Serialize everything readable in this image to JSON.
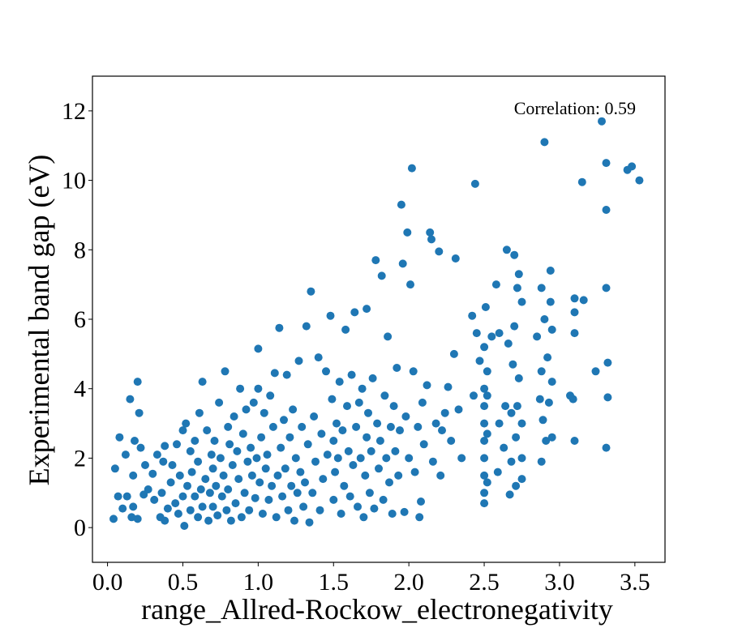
{
  "chart_data": {
    "type": "scatter",
    "xlabel": "range_Allred-Rockow_electronegativity",
    "ylabel": "Experimental band gap (eV)",
    "annotation": "Correlation: 0.59",
    "xlim": [
      -0.1,
      3.7
    ],
    "ylim": [
      -1,
      13
    ],
    "xticks": [
      0.0,
      0.5,
      1.0,
      1.5,
      2.0,
      2.5,
      3.0,
      3.5
    ],
    "xtick_labels": [
      "0.0",
      "0.5",
      "1.0",
      "1.5",
      "2.0",
      "2.5",
      "3.0",
      "3.5"
    ],
    "yticks": [
      0,
      2,
      4,
      6,
      8,
      10,
      12
    ],
    "ytick_labels": [
      "0",
      "2",
      "4",
      "6",
      "8",
      "10",
      "12"
    ],
    "grid": false,
    "marker_color": "#1f77b4",
    "series": [
      {
        "points": [
          [
            0.04,
            0.25
          ],
          [
            0.05,
            1.7
          ],
          [
            0.07,
            0.9
          ],
          [
            0.08,
            2.6
          ],
          [
            0.1,
            0.55
          ],
          [
            0.12,
            2.1
          ],
          [
            0.13,
            0.9
          ],
          [
            0.15,
            3.7
          ],
          [
            0.16,
            0.3
          ],
          [
            0.17,
            0.6
          ],
          [
            0.17,
            1.5
          ],
          [
            0.18,
            2.5
          ],
          [
            0.2,
            0.25
          ],
          [
            0.2,
            4.2
          ],
          [
            0.21,
            3.3
          ],
          [
            0.22,
            2.3
          ],
          [
            0.24,
            0.95
          ],
          [
            0.25,
            1.8
          ],
          [
            0.27,
            1.1
          ],
          [
            0.3,
            1.55
          ],
          [
            0.31,
            0.8
          ],
          [
            0.33,
            2.1
          ],
          [
            0.35,
            0.3
          ],
          [
            0.36,
            1.0
          ],
          [
            0.37,
            1.9
          ],
          [
            0.38,
            0.2
          ],
          [
            0.38,
            2.35
          ],
          [
            0.4,
            0.55
          ],
          [
            0.42,
            1.3
          ],
          [
            0.43,
            1.8
          ],
          [
            0.45,
            0.7
          ],
          [
            0.46,
            2.4
          ],
          [
            0.47,
            0.4
          ],
          [
            0.48,
            1.5
          ],
          [
            0.5,
            0.9
          ],
          [
            0.5,
            2.8
          ],
          [
            0.51,
            0.05
          ],
          [
            0.52,
            3.0
          ],
          [
            0.53,
            1.2
          ],
          [
            0.55,
            0.5
          ],
          [
            0.55,
            2.2
          ],
          [
            0.56,
            1.6
          ],
          [
            0.58,
            0.9
          ],
          [
            0.58,
            2.5
          ],
          [
            0.6,
            0.3
          ],
          [
            0.6,
            1.9
          ],
          [
            0.61,
            3.3
          ],
          [
            0.62,
            1.1
          ],
          [
            0.63,
            0.6
          ],
          [
            0.63,
            4.2
          ],
          [
            0.65,
            1.4
          ],
          [
            0.66,
            2.8
          ],
          [
            0.67,
            0.2
          ],
          [
            0.68,
            1.0
          ],
          [
            0.69,
            2.1
          ],
          [
            0.7,
            0.6
          ],
          [
            0.7,
            1.7
          ],
          [
            0.71,
            2.5
          ],
          [
            0.72,
            1.2
          ],
          [
            0.73,
            0.35
          ],
          [
            0.74,
            3.6
          ],
          [
            0.75,
            2.0
          ],
          [
            0.76,
            0.9
          ],
          [
            0.77,
            1.5
          ],
          [
            0.78,
            4.5
          ],
          [
            0.79,
            0.5
          ],
          [
            0.8,
            2.9
          ],
          [
            0.8,
            1.1
          ],
          [
            0.81,
            2.4
          ],
          [
            0.82,
            0.2
          ],
          [
            0.83,
            1.8
          ],
          [
            0.84,
            3.2
          ],
          [
            0.85,
            0.7
          ],
          [
            0.86,
            2.2
          ],
          [
            0.87,
            1.4
          ],
          [
            0.88,
            4.0
          ],
          [
            0.89,
            0.3
          ],
          [
            0.9,
            2.7
          ],
          [
            0.91,
            1.0
          ],
          [
            0.92,
            3.4
          ],
          [
            0.93,
            1.9
          ],
          [
            0.94,
            0.5
          ],
          [
            0.95,
            2.3
          ],
          [
            0.96,
            1.5
          ],
          [
            0.97,
            3.6
          ],
          [
            0.98,
            0.85
          ],
          [
            0.99,
            2.0
          ],
          [
            1.0,
            5.15
          ],
          [
            1.0,
            4.0
          ],
          [
            1.01,
            1.3
          ],
          [
            1.02,
            2.6
          ],
          [
            1.03,
            0.4
          ],
          [
            1.04,
            3.3
          ],
          [
            1.05,
            1.7
          ],
          [
            1.06,
            2.1
          ],
          [
            1.07,
            0.8
          ],
          [
            1.08,
            3.8
          ],
          [
            1.09,
            1.2
          ],
          [
            1.1,
            2.9
          ],
          [
            1.11,
            4.45
          ],
          [
            1.12,
            0.3
          ],
          [
            1.13,
            1.5
          ],
          [
            1.14,
            5.75
          ],
          [
            1.15,
            2.3
          ],
          [
            1.16,
            0.9
          ],
          [
            1.17,
            3.1
          ],
          [
            1.18,
            1.7
          ],
          [
            1.19,
            4.4
          ],
          [
            1.2,
            0.5
          ],
          [
            1.21,
            2.6
          ],
          [
            1.22,
            1.2
          ],
          [
            1.23,
            3.4
          ],
          [
            1.24,
            0.2
          ],
          [
            1.25,
            2.0
          ],
          [
            1.26,
            1.0
          ],
          [
            1.27,
            4.8
          ],
          [
            1.28,
            1.6
          ],
          [
            1.29,
            2.9
          ],
          [
            1.3,
            0.6
          ],
          [
            1.31,
            1.3
          ],
          [
            1.32,
            5.8
          ],
          [
            1.33,
            2.4
          ],
          [
            1.34,
            0.15
          ],
          [
            1.35,
            6.8
          ],
          [
            1.36,
            1.0
          ],
          [
            1.37,
            3.2
          ],
          [
            1.38,
            1.9
          ],
          [
            1.4,
            4.9
          ],
          [
            1.41,
            0.5
          ],
          [
            1.42,
            2.7
          ],
          [
            1.43,
            1.4
          ],
          [
            1.45,
            4.5
          ],
          [
            1.46,
            2.1
          ],
          [
            1.48,
            6.1
          ],
          [
            1.49,
            3.7
          ],
          [
            1.5,
            0.8
          ],
          [
            1.5,
            2.5
          ],
          [
            1.51,
            1.6
          ],
          [
            1.52,
            3.0
          ],
          [
            1.53,
            2.0
          ],
          [
            1.54,
            4.2
          ],
          [
            1.55,
            0.4
          ],
          [
            1.56,
            2.8
          ],
          [
            1.57,
            1.2
          ],
          [
            1.58,
            5.7
          ],
          [
            1.59,
            3.5
          ],
          [
            1.6,
            2.2
          ],
          [
            1.61,
            0.9
          ],
          [
            1.62,
            4.4
          ],
          [
            1.63,
            1.8
          ],
          [
            1.64,
            6.2
          ],
          [
            1.65,
            2.9
          ],
          [
            1.66,
            0.6
          ],
          [
            1.67,
            3.6
          ],
          [
            1.68,
            2.0
          ],
          [
            1.69,
            4.0
          ],
          [
            1.7,
            0.3
          ],
          [
            1.71,
            1.5
          ],
          [
            1.72,
            6.3
          ],
          [
            1.72,
            2.6
          ],
          [
            1.73,
            3.3
          ],
          [
            1.74,
            1.0
          ],
          [
            1.75,
            2.2
          ],
          [
            1.76,
            4.3
          ],
          [
            1.77,
            0.55
          ],
          [
            1.78,
            7.7
          ],
          [
            1.79,
            3.0
          ],
          [
            1.8,
            1.7
          ],
          [
            1.81,
            2.5
          ],
          [
            1.82,
            7.25
          ],
          [
            1.83,
            0.8
          ],
          [
            1.84,
            3.8
          ],
          [
            1.85,
            2.0
          ],
          [
            1.86,
            5.5
          ],
          [
            1.87,
            1.3
          ],
          [
            1.88,
            2.9
          ],
          [
            1.89,
            0.4
          ],
          [
            1.9,
            3.5
          ],
          [
            1.91,
            2.2
          ],
          [
            1.92,
            4.6
          ],
          [
            1.93,
            1.5
          ],
          [
            1.94,
            2.8
          ],
          [
            1.95,
            9.3
          ],
          [
            1.96,
            7.6
          ],
          [
            1.97,
            0.45
          ],
          [
            1.98,
            3.2
          ],
          [
            1.99,
            8.5
          ],
          [
            2.0,
            2.0
          ],
          [
            2.01,
            7.0
          ],
          [
            2.02,
            10.35
          ],
          [
            2.03,
            4.5
          ],
          [
            2.04,
            1.6
          ],
          [
            2.06,
            2.9
          ],
          [
            2.07,
            0.3
          ],
          [
            2.08,
            0.75
          ],
          [
            2.09,
            3.6
          ],
          [
            2.1,
            2.4
          ],
          [
            2.12,
            4.1
          ],
          [
            2.14,
            8.5
          ],
          [
            2.15,
            8.3
          ],
          [
            2.16,
            1.9
          ],
          [
            2.18,
            3.0
          ],
          [
            2.2,
            7.95
          ],
          [
            2.21,
            1.5
          ],
          [
            2.22,
            2.8
          ],
          [
            2.24,
            3.3
          ],
          [
            2.26,
            4.05
          ],
          [
            2.28,
            2.5
          ],
          [
            2.3,
            5.0
          ],
          [
            2.31,
            7.75
          ],
          [
            2.33,
            3.4
          ],
          [
            2.35,
            2.0
          ],
          [
            2.42,
            6.1
          ],
          [
            2.43,
            3.8
          ],
          [
            2.44,
            9.9
          ],
          [
            2.45,
            5.6
          ],
          [
            2.47,
            4.8
          ],
          [
            2.5,
            0.7
          ],
          [
            2.5,
            1.0
          ],
          [
            2.5,
            1.5
          ],
          [
            2.5,
            2.0
          ],
          [
            2.5,
            2.5
          ],
          [
            2.5,
            3.0
          ],
          [
            2.5,
            3.5
          ],
          [
            2.5,
            4.0
          ],
          [
            2.5,
            5.2
          ],
          [
            2.51,
            6.35
          ],
          [
            2.52,
            1.3
          ],
          [
            2.52,
            2.7
          ],
          [
            2.52,
            3.8
          ],
          [
            2.52,
            4.5
          ],
          [
            2.55,
            5.5
          ],
          [
            2.58,
            7.0
          ],
          [
            2.59,
            1.6
          ],
          [
            2.6,
            3.0
          ],
          [
            2.6,
            5.6
          ],
          [
            2.63,
            2.3
          ],
          [
            2.64,
            3.5
          ],
          [
            2.65,
            8.0
          ],
          [
            2.66,
            5.3
          ],
          [
            2.67,
            0.95
          ],
          [
            2.68,
            1.9
          ],
          [
            2.68,
            3.3
          ],
          [
            2.69,
            4.7
          ],
          [
            2.7,
            7.85
          ],
          [
            2.7,
            5.8
          ],
          [
            2.71,
            1.2
          ],
          [
            2.71,
            2.6
          ],
          [
            2.72,
            3.5
          ],
          [
            2.72,
            6.9
          ],
          [
            2.73,
            7.3
          ],
          [
            2.73,
            4.3
          ],
          [
            2.75,
            1.4
          ],
          [
            2.75,
            2.0
          ],
          [
            2.75,
            3.0
          ],
          [
            2.75,
            6.5
          ],
          [
            2.85,
            5.5
          ],
          [
            2.87,
            3.7
          ],
          [
            2.88,
            6.9
          ],
          [
            2.88,
            4.5
          ],
          [
            2.88,
            1.9
          ],
          [
            2.89,
            3.1
          ],
          [
            2.9,
            11.1
          ],
          [
            2.9,
            6.0
          ],
          [
            2.91,
            2.5
          ],
          [
            2.92,
            4.9
          ],
          [
            2.93,
            3.6
          ],
          [
            2.94,
            7.4
          ],
          [
            2.94,
            6.5
          ],
          [
            2.95,
            5.7
          ],
          [
            2.95,
            4.2
          ],
          [
            2.95,
            2.6
          ],
          [
            3.07,
            3.8
          ],
          [
            3.09,
            3.7
          ],
          [
            3.1,
            6.6
          ],
          [
            3.1,
            6.2
          ],
          [
            3.1,
            5.6
          ],
          [
            3.1,
            2.5
          ],
          [
            3.15,
            9.95
          ],
          [
            3.16,
            6.55
          ],
          [
            3.24,
            4.5
          ],
          [
            3.28,
            11.7
          ],
          [
            3.31,
            10.5
          ],
          [
            3.31,
            9.15
          ],
          [
            3.31,
            6.9
          ],
          [
            3.32,
            4.75
          ],
          [
            3.32,
            3.75
          ],
          [
            3.31,
            2.3
          ],
          [
            3.45,
            10.3
          ],
          [
            3.48,
            10.4
          ],
          [
            3.53,
            10.0
          ]
        ]
      }
    ]
  }
}
